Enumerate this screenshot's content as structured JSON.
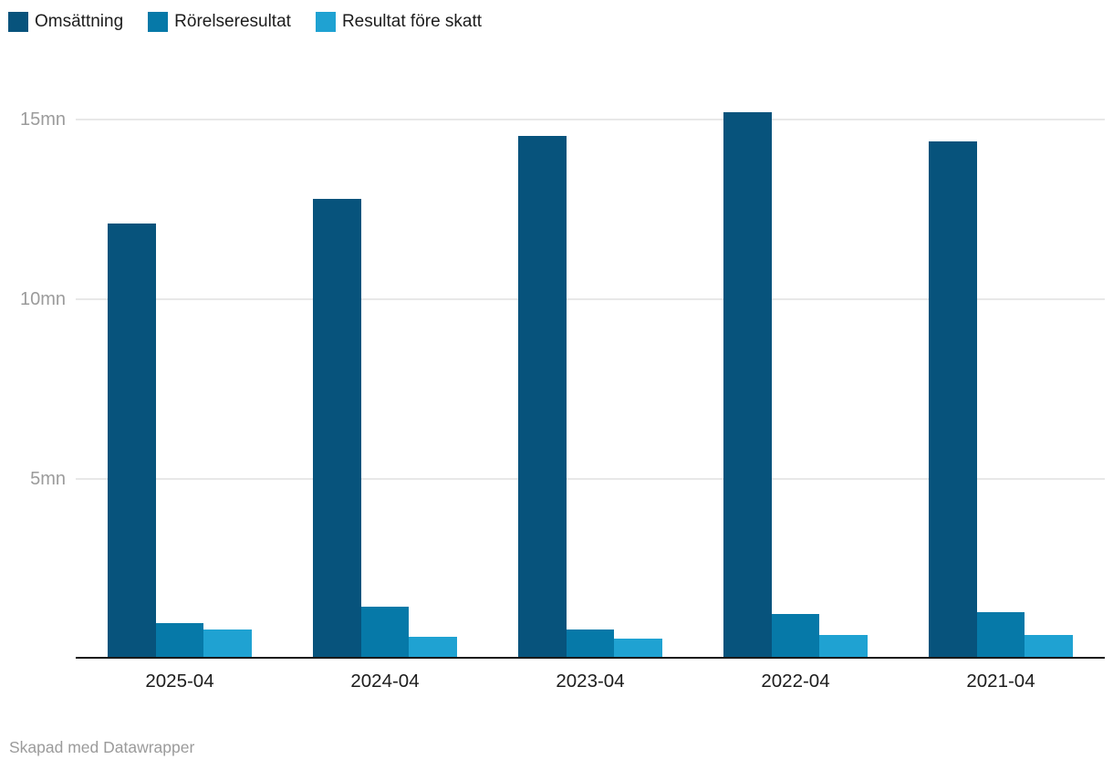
{
  "footer": {
    "credit": "Skapad med Datawrapper"
  },
  "colors": {
    "series_dark": "#07537c",
    "series_medium": "#0679a8",
    "series_light": "#1fa2d2",
    "axis_line": "#1a1a1a",
    "grid_line": "#e8e8e8",
    "tick_text": "#9b9b9b"
  },
  "chart_data": {
    "type": "bar",
    "title": "",
    "xlabel": "",
    "ylabel": "",
    "unit": "mn",
    "grid": true,
    "legend_position": "top-left",
    "ylim": [
      0,
      16.2
    ],
    "yticks": [
      {
        "value": 5,
        "label": "5mn"
      },
      {
        "value": 10,
        "label": "10mn"
      },
      {
        "value": 15,
        "label": "15mn"
      }
    ],
    "categories": [
      "2025-04",
      "2024-04",
      "2023-04",
      "2022-04",
      "2021-04"
    ],
    "series": [
      {
        "name": "Omsättning",
        "slug": "omsattning",
        "color": "#07537c",
        "values": [
          12.1,
          12.8,
          14.55,
          15.2,
          14.4
        ]
      },
      {
        "name": "Rörelseresultat",
        "slug": "rorelseresultat",
        "color": "#0679a8",
        "values": [
          1.0,
          1.45,
          0.8,
          1.25,
          1.3
        ]
      },
      {
        "name": "Resultat före skatt",
        "slug": "resultat-fore-skatt",
        "color": "#1fa2d2",
        "values": [
          0.8,
          0.6,
          0.55,
          0.65,
          0.65
        ]
      }
    ]
  }
}
